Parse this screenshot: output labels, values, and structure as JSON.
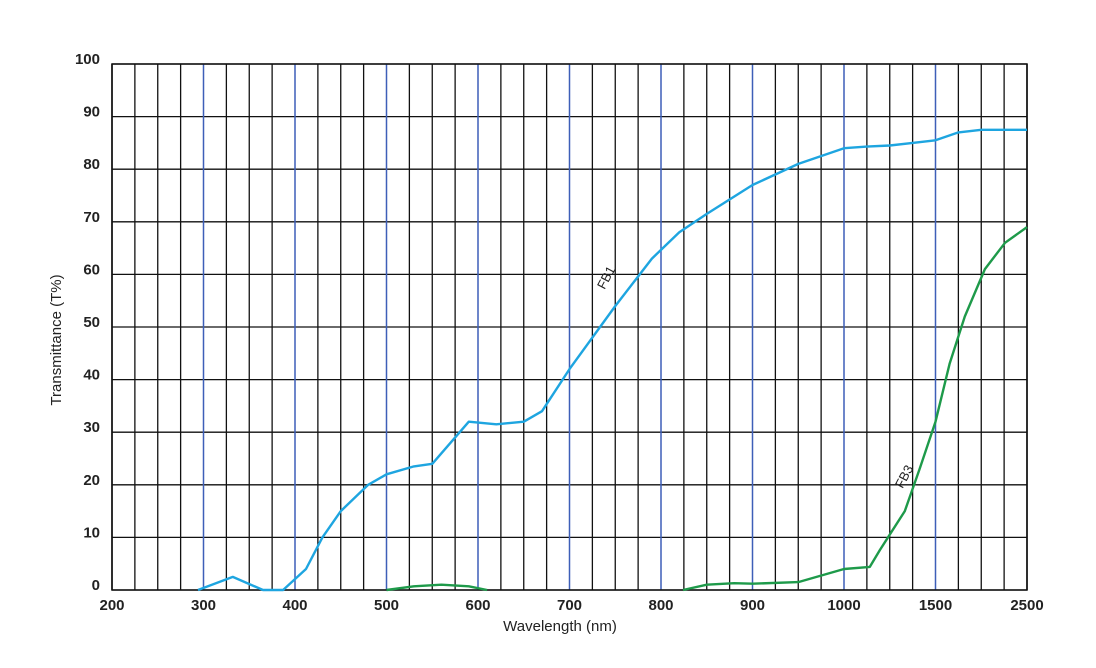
{
  "chart_data": {
    "type": "line",
    "xlabel": "Wavelength (nm)",
    "ylabel": "Transmittance (T%)",
    "xticks": [
      200,
      300,
      400,
      500,
      600,
      700,
      800,
      900,
      1000,
      1500,
      2500
    ],
    "xlim": [
      200,
      2500
    ],
    "xminorticks": [
      225,
      250,
      275,
      325,
      350,
      375,
      425,
      450,
      475,
      525,
      550,
      575,
      625,
      650,
      675,
      725,
      750,
      775,
      825,
      850,
      875,
      925,
      950,
      975,
      1125,
      1250,
      1375,
      1750,
      2000,
      2250
    ],
    "ylim": [
      0,
      100
    ],
    "yticks": [
      0,
      10,
      20,
      30,
      40,
      50,
      60,
      70,
      80,
      90,
      100
    ],
    "grid": true,
    "major_grid_color": "#3d5fb8",
    "minor_grid_color": "#111111",
    "series": [
      {
        "name": "FB1",
        "color": "#1ea5e0",
        "x": [
          294,
          332,
          365,
          387,
          412,
          430,
          450,
          480,
          500,
          530,
          550,
          570,
          590,
          620,
          650,
          670,
          700,
          750,
          790,
          820,
          850,
          900,
          950,
          1000,
          1125,
          1250,
          1375,
          1500,
          1750,
          2000,
          2250,
          2500
        ],
        "values": [
          0,
          2.5,
          0,
          0,
          4,
          10,
          15,
          20,
          22,
          23.5,
          24,
          28,
          32,
          31.5,
          32,
          34,
          42,
          54,
          63,
          68,
          71.5,
          77,
          81,
          84,
          84.3,
          84.5,
          85,
          85.5,
          87,
          87.5,
          87.5,
          87.5
        ]
      },
      {
        "name": "FB3",
        "color": "#1e9a4a",
        "x": [
          500,
          530,
          560,
          590,
          610,
          720,
          824,
          850,
          880,
          900,
          950,
          1000,
          1141,
          1196,
          1332,
          1413,
          1500,
          1654,
          1820,
          2040,
          2260,
          2500
        ],
        "values": [
          0,
          0.7,
          1,
          0.7,
          0,
          null,
          0,
          1,
          1.3,
          1.2,
          1.5,
          4,
          4.4,
          7.6,
          15,
          23,
          32,
          43,
          52,
          61,
          66,
          69
        ]
      }
    ]
  }
}
